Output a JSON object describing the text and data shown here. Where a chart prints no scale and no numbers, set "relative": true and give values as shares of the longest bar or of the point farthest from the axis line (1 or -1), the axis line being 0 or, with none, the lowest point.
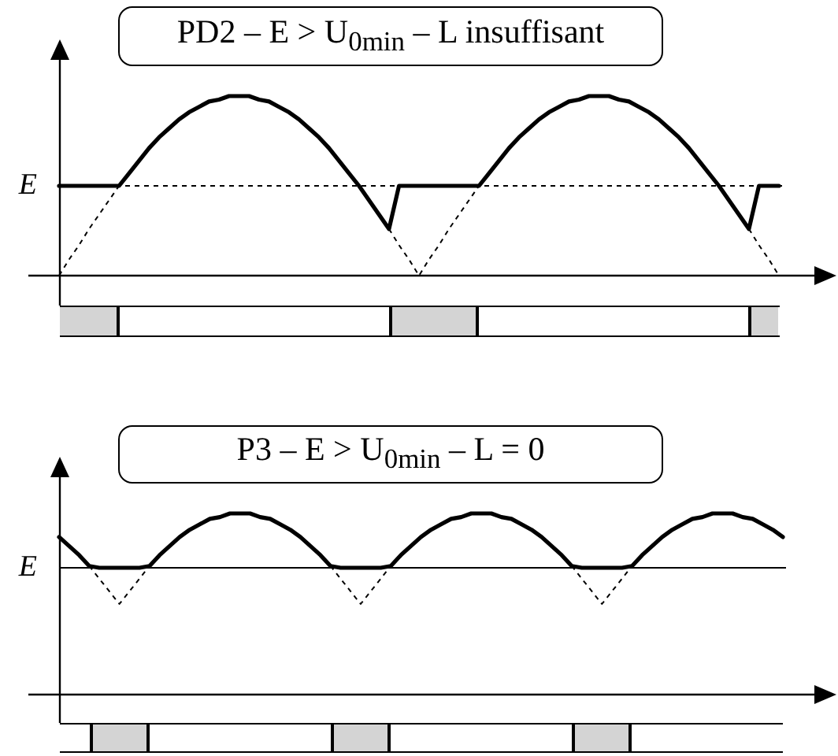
{
  "chart_data": [
    {
      "type": "line",
      "title": "PD2 – E > U$_{0min}$ – L insuffisant",
      "relative": true,
      "tick_labels": false,
      "marker": "none",
      "line_style": "solid",
      "categories": [
        null,
        null,
        null,
        null,
        null,
        null,
        null,
        null,
        null,
        null,
        null,
        null,
        null,
        null,
        null,
        null,
        null,
        null,
        null,
        null,
        null,
        null,
        null,
        null,
        null,
        null,
        null,
        null,
        null,
        null,
        null,
        null,
        null,
        null,
        null,
        null,
        null,
        null,
        null,
        null,
        null,
        null,
        null,
        null,
        null,
        null,
        null,
        null,
        null,
        null,
        null,
        null,
        null,
        null,
        null,
        null,
        null,
        null,
        null,
        null,
        null,
        null,
        null,
        null,
        null,
        null,
        null,
        null,
        null,
        null,
        null,
        null,
        null
      ],
      "series": [
        {
          "color": "#000000",
          "values": [
            0.5,
            0.5,
            0.5,
            0.5,
            0.5,
            0.5,
            0.5,
            0.57,
            0.64,
            0.71,
            0.77,
            0.82,
            0.87,
            0.91,
            0.94,
            0.97,
            0.98,
            1,
            1,
            1,
            0.98,
            0.97,
            0.94,
            0.91,
            0.87,
            0.82,
            0.77,
            0.71,
            0.64,
            0.57,
            0.5,
            0.42,
            0.34,
            0.26,
            0.5,
            0.5,
            0.5,
            0.5,
            0.5,
            0.5,
            0.5,
            0.5,
            0.5,
            0.57,
            0.64,
            0.71,
            0.77,
            0.82,
            0.87,
            0.91,
            0.94,
            0.97,
            0.98,
            1,
            1,
            1,
            0.98,
            0.97,
            0.94,
            0.91,
            0.87,
            0.82,
            0.77,
            0.71,
            0.64,
            0.57,
            0.5,
            0.42,
            0.34,
            0.26,
            0.5,
            0.5,
            0.5
          ]
        },
        {
          "color": "#000000",
          "line_style": "dashed",
          "values": [
            0,
            0.09,
            0.17,
            0.26,
            0.34,
            0.42,
            0.5,
            null,
            null,
            null,
            null,
            null,
            null,
            null,
            null,
            null,
            null,
            null,
            null,
            null,
            null,
            null,
            null,
            null,
            null,
            null,
            null,
            null,
            null,
            null,
            null,
            null,
            null,
            0.26,
            0.17,
            0.09,
            0,
            0.09,
            0.17,
            0.26,
            0.34,
            0.42,
            0.5,
            null,
            null,
            null,
            null,
            null,
            null,
            null,
            null,
            null,
            null,
            null,
            null,
            null,
            null,
            null,
            null,
            null,
            null,
            null,
            null,
            null,
            null,
            null,
            null,
            null,
            null,
            0.26,
            0.17,
            0.09,
            0
          ]
        }
      ],
      "ref_lines": [
        {
          "axis": "y",
          "value": 0.5,
          "label": "E",
          "color": "#000000",
          "line_style": "dashed"
        }
      ]
    },
    {
      "type": "line",
      "title": "P3 – E > U$_{0min}$ – L = 0",
      "relative": true,
      "tick_labels": false,
      "marker": "none",
      "line_style": "solid",
      "categories": [
        null,
        null,
        null,
        null,
        null,
        null,
        null,
        null,
        null,
        null,
        null,
        null,
        null,
        null,
        null,
        null,
        null,
        null,
        null,
        null,
        null,
        null,
        null,
        null,
        null,
        null,
        null,
        null,
        null,
        null,
        null,
        null,
        null,
        null,
        null,
        null,
        null,
        null,
        null,
        null,
        null,
        null,
        null,
        null,
        null,
        null,
        null,
        null,
        null,
        null,
        null,
        null,
        null,
        null,
        null,
        null,
        null,
        null,
        null,
        null,
        null,
        null,
        null,
        null,
        null,
        null,
        null,
        null,
        null,
        null,
        null,
        null,
        null
      ],
      "series": [
        {
          "color": "#000000",
          "values": [
            0.87,
            0.82,
            0.77,
            0.71,
            0.7,
            0.7,
            0.7,
            0.7,
            0.7,
            0.71,
            0.77,
            0.82,
            0.87,
            0.91,
            0.94,
            0.97,
            0.98,
            1,
            1,
            1,
            0.98,
            0.97,
            0.94,
            0.91,
            0.87,
            0.82,
            0.77,
            0.71,
            0.7,
            0.7,
            0.7,
            0.7,
            0.7,
            0.71,
            0.77,
            0.82,
            0.87,
            0.91,
            0.94,
            0.97,
            0.98,
            1,
            1,
            1,
            0.98,
            0.97,
            0.94,
            0.91,
            0.87,
            0.82,
            0.77,
            0.71,
            0.7,
            0.7,
            0.7,
            0.7,
            0.7,
            0.71,
            0.77,
            0.82,
            0.87,
            0.91,
            0.94,
            0.97,
            0.98,
            1,
            1,
            1,
            0.98,
            0.97,
            0.94,
            0.91,
            0.87
          ]
        },
        {
          "color": "#000000",
          "line_style": "dashed",
          "values": [
            null,
            null,
            null,
            0.71,
            0.64,
            0.57,
            0.5,
            0.57,
            0.64,
            0.71,
            null,
            null,
            null,
            null,
            null,
            null,
            null,
            null,
            null,
            null,
            null,
            null,
            null,
            null,
            null,
            null,
            null,
            0.71,
            0.64,
            0.57,
            0.5,
            0.57,
            0.64,
            0.71,
            null,
            null,
            null,
            null,
            null,
            null,
            null,
            null,
            null,
            null,
            null,
            null,
            null,
            null,
            null,
            null,
            null,
            0.71,
            0.64,
            0.57,
            0.5,
            0.57,
            0.64,
            0.71,
            null,
            null,
            null,
            null,
            null,
            null,
            null,
            null,
            null,
            null,
            null,
            null,
            null,
            null,
            null
          ]
        }
      ],
      "ref_lines": [
        {
          "axis": "y",
          "value": 0.7,
          "label": "E",
          "color": "#000000",
          "line_style": "solid"
        }
      ]
    }
  ]
}
